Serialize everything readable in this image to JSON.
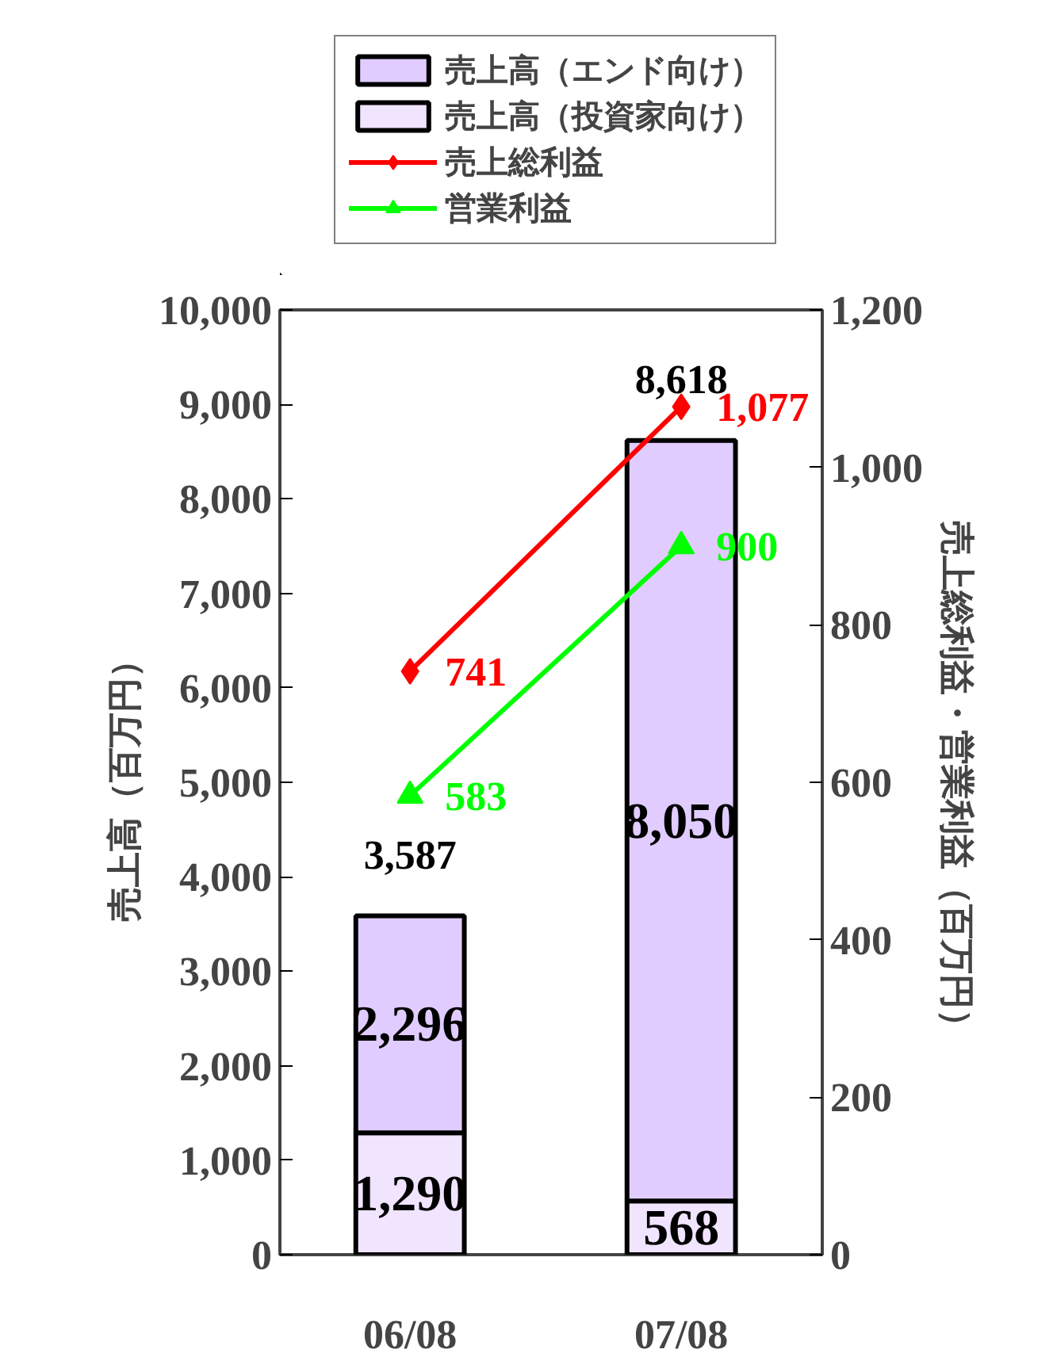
{
  "chart_data": {
    "type": "bar",
    "stacked": true,
    "categories": [
      "06/08",
      "07/08"
    ],
    "ylabel": "売上高（百万円）",
    "y2label": "売上総利益・営業利益（百万円）",
    "series": [
      {
        "name": "売上高（投資家向け）",
        "color": "#f0e4ff",
        "values": [
          1290,
          568
        ],
        "value_labels": [
          "1,290",
          "568"
        ]
      },
      {
        "name": "売上高（エンド向け）",
        "color": "#e0ccff",
        "values": [
          2296,
          8050
        ],
        "value_labels": [
          "2,296",
          "8,050"
        ]
      },
      {
        "name": "売上総利益",
        "type": "line",
        "axis": "y2",
        "color": "#ff0000",
        "marker": "diamond",
        "values": [
          741,
          1077
        ],
        "value_labels": [
          "741",
          "1,077"
        ]
      },
      {
        "name": "営業利益",
        "type": "line",
        "axis": "y2",
        "color": "#00ff00",
        "marker": "triangle",
        "values": [
          583,
          900
        ],
        "value_labels": [
          "583",
          "900"
        ]
      }
    ],
    "totals": [
      "3,587",
      "8,618"
    ],
    "legend": "top",
    "grid": false,
    "ylim": [
      0,
      10000
    ],
    "yticks": [
      0,
      {
        "value": 1000,
        "label": "1,000"
      },
      {
        "value": 2000,
        "label": "2,000"
      },
      {
        "value": 3000,
        "label": "3,000"
      },
      {
        "value": 4000,
        "label": "4,000"
      },
      {
        "value": 5000,
        "label": "5,000"
      },
      {
        "value": 6000,
        "label": "6,000"
      },
      {
        "value": 7000,
        "label": "7,000"
      },
      {
        "value": 8000,
        "label": "8,000"
      },
      {
        "value": 9000,
        "label": "9,000"
      },
      {
        "value": 10000,
        "label": "10,000"
      }
    ],
    "y2lim": [
      0,
      1200
    ],
    "y2ticks": [
      0,
      200,
      400,
      600,
      800,
      {
        "value": 1000,
        "label": "1,000"
      },
      {
        "value": 1200,
        "label": "1,200"
      }
    ]
  }
}
